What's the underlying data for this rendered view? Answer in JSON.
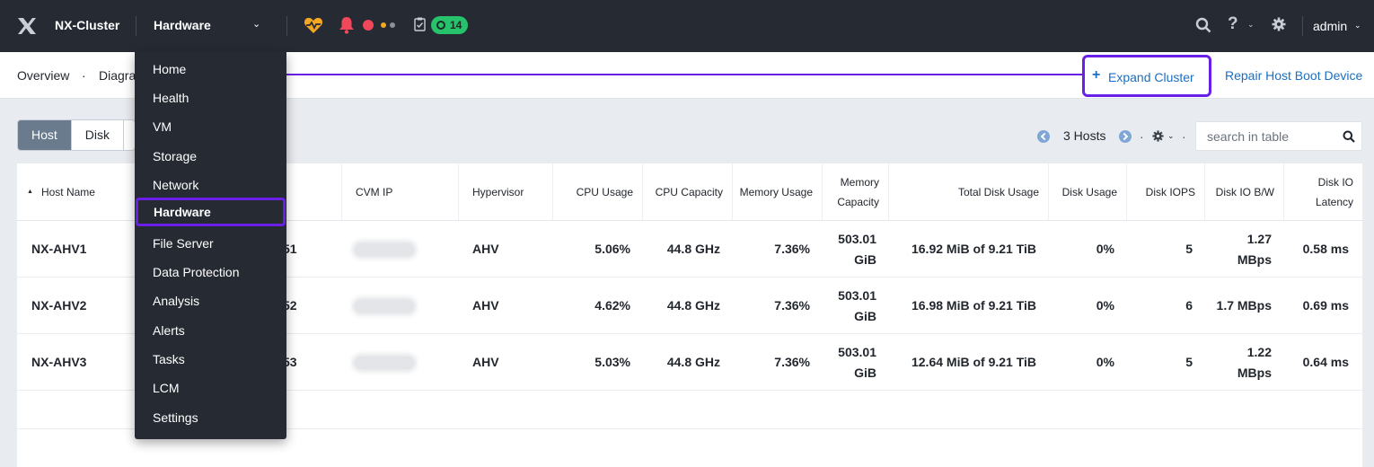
{
  "topbar": {
    "cluster_name": "NX-Cluster",
    "menu_label": "Hardware",
    "task_count": "14",
    "help_label": "?",
    "user_name": "admin"
  },
  "breadcrumb": {
    "overview": "Overview",
    "separator": "·",
    "diagram_partial": "Diagra"
  },
  "actions": {
    "expand_plus": "+",
    "expand_label": "Expand Cluster",
    "repair_label": "Repair Host Boot Device"
  },
  "view_tabs": [
    "Host",
    "Disk"
  ],
  "pager": {
    "count_label": "3 Hosts",
    "dot": "·"
  },
  "search": {
    "placeholder": "search in table"
  },
  "table": {
    "headers": {
      "host_name": "Host Name",
      "cvm_ip": "CVM IP",
      "hypervisor": "Hypervisor",
      "cpu_usage": "CPU Usage",
      "cpu_capacity": "CPU Capacity",
      "memory_usage": "Memory Usage",
      "memory_capacity_1": "Memory",
      "memory_capacity_2": "Capacity",
      "total_disk_usage": "Total Disk Usage",
      "disk_usage": "Disk Usage",
      "disk_iops": "Disk IOPS",
      "disk_io_bw": "Disk IO B/W",
      "disk_io_latency_1": "Disk IO",
      "disk_io_latency_2": "Latency"
    },
    "rows": [
      {
        "host_name": "NX-AHV1",
        "host_ip_tail": "51",
        "hypervisor": "AHV",
        "cpu_usage": "5.06%",
        "cpu_capacity": "44.8 GHz",
        "memory_usage": "7.36%",
        "memory_capacity_1": "503.01",
        "memory_capacity_2": "GiB",
        "total_disk_usage": "16.92 MiB of 9.21 TiB",
        "disk_usage": "0%",
        "disk_iops": "5",
        "disk_io_bw_1": "1.27",
        "disk_io_bw_2": "MBps",
        "disk_io_latency": "0.58 ms"
      },
      {
        "host_name": "NX-AHV2",
        "host_ip_tail": "52",
        "hypervisor": "AHV",
        "cpu_usage": "4.62%",
        "cpu_capacity": "44.8 GHz",
        "memory_usage": "7.36%",
        "memory_capacity_1": "503.01",
        "memory_capacity_2": "GiB",
        "total_disk_usage": "16.98 MiB of 9.21 TiB",
        "disk_usage": "0%",
        "disk_iops": "6",
        "disk_io_bw_1": "1.7 MBps",
        "disk_io_bw_2": "",
        "disk_io_latency": "0.69 ms"
      },
      {
        "host_name": "NX-AHV3",
        "host_ip_tail": "53",
        "hypervisor": "AHV",
        "cpu_usage": "5.03%",
        "cpu_capacity": "44.8 GHz",
        "memory_usage": "7.36%",
        "memory_capacity_1": "503.01",
        "memory_capacity_2": "GiB",
        "total_disk_usage": "12.64 MiB of 9.21 TiB",
        "disk_usage": "0%",
        "disk_iops": "5",
        "disk_io_bw_1": "1.22",
        "disk_io_bw_2": "MBps",
        "disk_io_latency": "0.64 ms"
      }
    ]
  },
  "menu": {
    "items": [
      "Home",
      "Health",
      "VM",
      "Storage",
      "Network",
      "Hardware",
      "File Server",
      "Data Protection",
      "Analysis",
      "Alerts",
      "Tasks",
      "LCM",
      "Settings"
    ],
    "selected": "Hardware"
  },
  "colors": {
    "topbar_bg": "#252a33",
    "highlight": "#6a1fe6",
    "link": "#1b6fc2",
    "badge_green": "#27c26c",
    "alert_red": "#f0475a",
    "health_orange": "#f5a623"
  },
  "icons": [
    "nutanix-logo-icon",
    "health-heart-icon",
    "bell-icon",
    "task-clipboard-icon",
    "search-icon",
    "gear-icon",
    "chevron-down-icon",
    "sort-up-icon"
  ]
}
